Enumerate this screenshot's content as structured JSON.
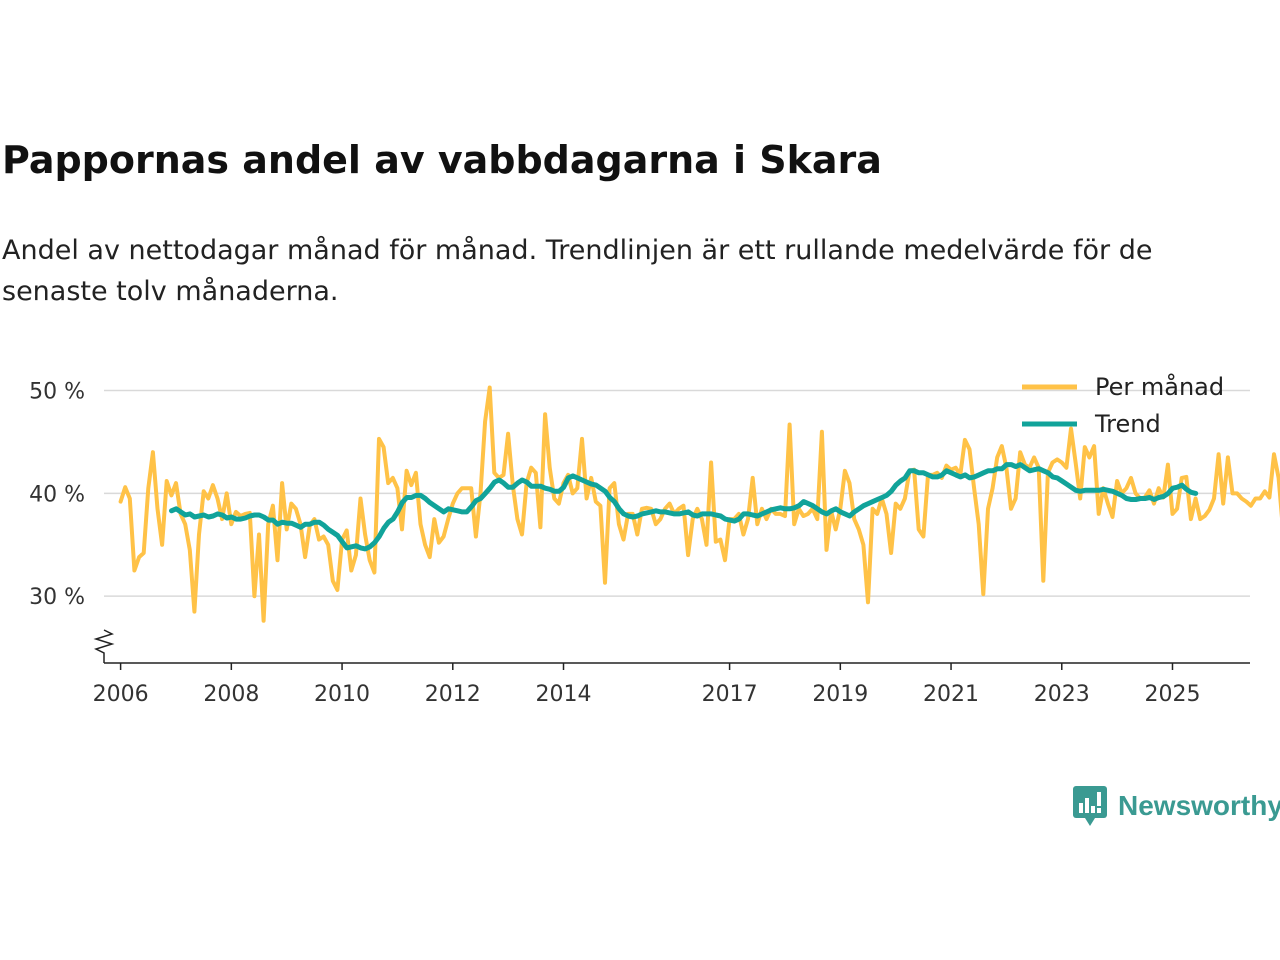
{
  "title": "Pappornas andel av vabbdagarna i Skara",
  "subtitle": "Andel av nettodagar månad för månad. Trendlinjen är ett rullande medelvärde för de senaste tolv månaderna.",
  "brand": "Newsworthy",
  "chart_data": {
    "type": "line",
    "ylim": [
      23.5,
      52
    ],
    "xlim": [
      2005.7,
      2026.4
    ],
    "grid": true,
    "axis_break": true,
    "y_ticks": [
      {
        "value": 30,
        "label": "30 %"
      },
      {
        "value": 40,
        "label": "40 %"
      },
      {
        "value": 50,
        "label": "50 %"
      }
    ],
    "x_ticks": [
      {
        "value": 2006,
        "label": "2006"
      },
      {
        "value": 2008,
        "label": "2008"
      },
      {
        "value": 2010,
        "label": "2010"
      },
      {
        "value": 2012,
        "label": "2012"
      },
      {
        "value": 2014,
        "label": "2014"
      },
      {
        "value": 2017,
        "label": "2017"
      },
      {
        "value": 2019,
        "label": "2019"
      },
      {
        "value": 2021,
        "label": "2021"
      },
      {
        "value": 2023,
        "label": "2023"
      },
      {
        "value": 2025,
        "label": "2025"
      }
    ],
    "legend_position": "top-right",
    "series": [
      {
        "name": "Per månad",
        "color": "#ffc247",
        "start": 2006.0,
        "step": 0.0833333,
        "values": [
          39.2,
          40.6,
          39.5,
          32.5,
          33.8,
          34.2,
          40.5,
          44.0,
          38.5,
          35.0,
          41.2,
          39.8,
          41.0,
          38.0,
          37.0,
          34.5,
          28.5,
          36.0,
          40.2,
          39.5,
          40.8,
          39.5,
          37.5,
          40.0,
          37.0,
          38.2,
          37.8,
          38.0,
          38.1,
          30.0,
          36.0,
          27.6,
          37.0,
          38.8,
          33.5,
          41.0,
          36.5,
          39.0,
          38.5,
          37.0,
          33.8,
          36.9,
          37.5,
          35.5,
          35.8,
          35.0,
          31.5,
          30.6,
          35.5,
          36.4,
          32.5,
          34.0,
          39.5,
          36.0,
          33.5,
          32.3,
          45.3,
          44.5,
          41.0,
          41.5,
          40.5,
          36.5,
          42.2,
          40.8,
          42.0,
          37.0,
          35.0,
          33.8,
          37.5,
          35.2,
          35.8,
          37.5,
          39.0,
          40.0,
          40.5,
          40.5,
          40.5,
          35.8,
          40.0,
          47.0,
          50.3,
          42.0,
          41.5,
          41.8,
          45.8,
          40.8,
          37.5,
          36.0,
          41.0,
          42.5,
          42.0,
          36.7,
          47.7,
          42.5,
          39.5,
          39.0,
          41.0,
          41.8,
          40.0,
          40.5,
          45.3,
          39.5,
          41.5,
          39.2,
          38.8,
          31.3,
          40.5,
          41.0,
          37.0,
          35.5,
          38.0,
          38.0,
          36.0,
          38.5,
          38.6,
          38.5,
          37.0,
          37.5,
          38.5,
          39.0,
          38.0,
          38.5,
          38.8,
          34.0,
          37.5,
          38.5,
          37.5,
          35.0,
          43.0,
          35.3,
          35.5,
          33.5,
          37.5,
          37.5,
          38.0,
          36.0,
          37.5,
          41.5,
          37.0,
          38.5,
          37.5,
          38.5,
          38.0,
          38.0,
          37.8,
          46.7,
          37.0,
          38.5,
          37.8,
          38.0,
          38.5,
          37.5,
          46.0,
          34.5,
          38.3,
          36.5,
          38.5,
          42.2,
          41.0,
          37.5,
          36.5,
          35.0,
          29.4,
          38.5,
          38.0,
          39.5,
          38.0,
          34.2,
          39.0,
          38.5,
          39.5,
          42.2,
          42.3,
          36.5,
          35.8,
          41.8,
          41.8,
          42.0,
          41.5,
          42.7,
          42.3,
          42.5,
          41.8,
          45.2,
          44.3,
          40.5,
          37.0,
          30.2,
          38.5,
          40.5,
          43.5,
          44.6,
          42.5,
          38.5,
          39.5,
          44.0,
          42.8,
          42.5,
          43.5,
          42.5,
          31.5,
          42.0,
          43.0,
          43.3,
          43.0,
          42.5,
          46.3,
          43.0,
          39.5,
          44.5,
          43.5,
          44.6,
          38.0,
          40.5,
          39.0,
          37.7,
          41.2,
          40.0,
          40.5,
          41.5,
          40.0,
          39.5,
          39.6,
          40.3,
          39.0,
          40.5,
          39.6,
          42.8,
          38.0,
          38.5,
          41.5,
          41.6,
          37.5,
          39.5,
          37.5,
          37.8,
          38.4,
          39.5,
          43.8,
          39.0,
          43.5,
          40.0,
          40.0,
          39.5,
          39.2,
          38.8,
          39.5,
          39.5,
          40.2,
          39.6,
          43.8,
          41.5,
          36.2
        ]
      },
      {
        "name": "Trend",
        "color": "#11a39a",
        "start": 2006.92,
        "step": 0.0833333,
        "values": [
          38.3,
          38.5,
          38.2,
          37.9,
          38.0,
          37.7,
          37.8,
          37.9,
          37.7,
          37.8,
          38.0,
          37.9,
          37.6,
          37.7,
          37.5,
          37.5,
          37.6,
          37.8,
          37.9,
          37.9,
          37.7,
          37.4,
          37.4,
          37.0,
          37.2,
          37.1,
          37.1,
          36.9,
          36.7,
          37.0,
          37.0,
          37.2,
          37.2,
          36.9,
          36.5,
          36.2,
          35.9,
          35.3,
          34.7,
          34.8,
          34.9,
          34.7,
          34.6,
          34.8,
          35.2,
          35.8,
          36.6,
          37.2,
          37.5,
          38.2,
          39.1,
          39.6,
          39.6,
          39.8,
          39.8,
          39.5,
          39.1,
          38.8,
          38.5,
          38.2,
          38.5,
          38.4,
          38.3,
          38.2,
          38.2,
          38.7,
          39.3,
          39.5,
          40.0,
          40.5,
          41.1,
          41.3,
          41.0,
          40.6,
          40.6,
          41.0,
          41.3,
          41.1,
          40.7,
          40.7,
          40.7,
          40.5,
          40.4,
          40.2,
          40.2,
          40.6,
          41.5,
          41.7,
          41.5,
          41.3,
          41.1,
          40.9,
          40.8,
          40.5,
          40.2,
          39.6,
          39.2,
          38.5,
          38.0,
          37.8,
          37.7,
          37.8,
          38.0,
          38.1,
          38.2,
          38.3,
          38.2,
          38.2,
          38.1,
          38.0,
          38.0,
          38.1,
          38.2,
          37.9,
          37.8,
          38.0,
          38.0,
          38.0,
          37.9,
          37.8,
          37.5,
          37.4,
          37.3,
          37.5,
          38.0,
          38.0,
          37.9,
          37.8,
          38.0,
          38.2,
          38.4,
          38.5,
          38.6,
          38.5,
          38.5,
          38.6,
          38.8,
          39.2,
          39.0,
          38.8,
          38.5,
          38.2,
          38.0,
          38.3,
          38.5,
          38.2,
          38.0,
          37.8,
          38.2,
          38.5,
          38.8,
          39.0,
          39.2,
          39.4,
          39.6,
          39.8,
          40.2,
          40.8,
          41.2,
          41.5,
          42.2,
          42.2,
          42.0,
          42.0,
          41.8,
          41.6,
          41.6,
          41.8,
          42.2,
          42.0,
          41.8,
          41.6,
          41.8,
          41.5,
          41.6,
          41.8,
          42.0,
          42.2,
          42.2,
          42.4,
          42.4,
          42.8,
          42.8,
          42.6,
          42.8,
          42.5,
          42.2,
          42.3,
          42.4,
          42.2,
          42.0,
          41.6,
          41.5,
          41.2,
          40.9,
          40.6,
          40.3,
          40.2,
          40.3,
          40.3,
          40.3,
          40.3,
          40.4,
          40.3,
          40.2,
          40.0,
          39.8,
          39.5,
          39.4,
          39.4,
          39.5,
          39.5,
          39.6,
          39.4,
          39.6,
          39.7,
          40.0,
          40.5,
          40.6,
          40.8,
          40.4,
          40.1,
          40.0
        ]
      }
    ]
  }
}
